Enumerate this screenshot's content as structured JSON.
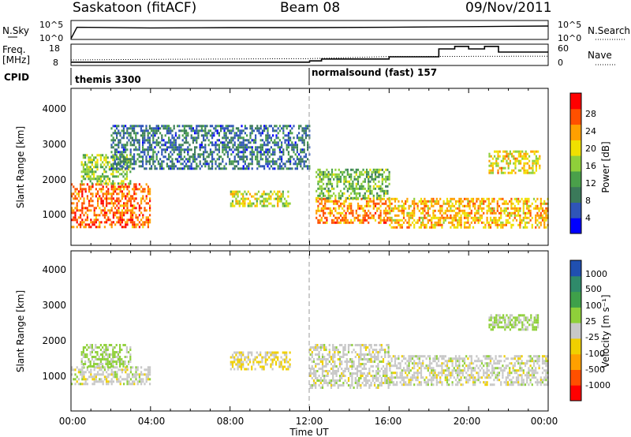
{
  "header": {
    "station": "Saskatoon (fitACF)",
    "beam": "Beam 08",
    "date": "09/Nov/2011"
  },
  "strip": {
    "nsky_label": "N.Sky",
    "nsky_ticks": [
      "10^5",
      "10^0"
    ],
    "nsearch_label": "N.Search",
    "nsearch_ticks": [
      "10^5",
      "10^0"
    ],
    "freq_label": "Freq.",
    "freq_unit": "[MHz]",
    "freq_ticks": [
      "18",
      "8"
    ],
    "nave_label": "Nave",
    "nave_ticks": [
      "60",
      "0"
    ],
    "cpid_label": "CPID",
    "cpid_segments": [
      {
        "name": "themis 3300",
        "start_hour": 0
      },
      {
        "name": "normalsound (fast) 157",
        "start_hour": 12
      }
    ]
  },
  "axes": {
    "ylabel": "Slant Range [km]",
    "xlabel": "Time UT",
    "yticks": [
      "4000",
      "3000",
      "2000",
      "1000"
    ],
    "xticks": [
      "00:00",
      "04:00",
      "08:00",
      "12:00",
      "16:00",
      "20:00",
      "00:00"
    ]
  },
  "colorbars": {
    "power": {
      "label": "Power [dB]",
      "ticks": [
        "28",
        "24",
        "20",
        "16",
        "12",
        "8",
        "4"
      ],
      "colors": [
        "#0000ff",
        "#2f55b8",
        "#3b7a5a",
        "#4aa04a",
        "#8fd03a",
        "#f0e000",
        "#ffa000",
        "#ff5000",
        "#ff0000"
      ]
    },
    "velocity": {
      "label": "Velocity [m s⁻¹]",
      "ticks": [
        "1000",
        "500",
        "100",
        "25",
        "-25",
        "-100",
        "-500",
        "-1000"
      ],
      "colors": [
        "#ff0000",
        "#ff5000",
        "#ffa000",
        "#f0d000",
        "#c8c8c8",
        "#8fd03a",
        "#3fa04a",
        "#2f8a6a",
        "#2050b0"
      ]
    }
  },
  "chart_data": [
    {
      "type": "line",
      "title": "Saskatoon (fitACF) Beam 08 09/Nov/2011",
      "series": [
        {
          "name": "N.Sky",
          "x_hours": [
            0,
            0.3,
            4,
            8,
            12,
            16,
            20,
            24
          ],
          "log10_values": [
            0,
            3.6,
            3.4,
            3.5,
            3.5,
            3.6,
            3.8,
            4.0
          ]
        },
        {
          "name": "Freq.",
          "x_hours": [
            0,
            4,
            12,
            16,
            24
          ],
          "values_mhz": [
            10.5,
            10.8,
            11.2,
            12.3,
            12.5
          ]
        },
        {
          "name": "Nave",
          "x_hours": [
            0,
            12,
            12.6,
            16,
            18.5,
            19.3,
            20,
            20.8,
            21.5,
            24
          ],
          "values": [
            8,
            12,
            18,
            25,
            50,
            58,
            50,
            58,
            40,
            40
          ]
        }
      ]
    },
    {
      "type": "heatmap",
      "title": "Power [dB]",
      "xlabel": "Time UT",
      "ylabel": "Slant Range [km]",
      "xlim_hours": [
        0,
        24
      ],
      "ylim_km": [
        200,
        4500
      ],
      "zlim_db": [
        0,
        32
      ],
      "regions": [
        {
          "hours": [
            0,
            4
          ],
          "range_km": [
            700,
            1900
          ],
          "power_db": 26
        },
        {
          "hours": [
            0.5,
            3
          ],
          "range_km": [
            1900,
            2700
          ],
          "power_db": 16
        },
        {
          "hours": [
            2,
            12
          ],
          "range_km": [
            2300,
            3500
          ],
          "power_db": 8
        },
        {
          "hours": [
            8,
            11
          ],
          "range_km": [
            1300,
            1700
          ],
          "power_db": 18
        },
        {
          "hours": [
            12.3,
            16
          ],
          "range_km": [
            800,
            1500
          ],
          "power_db": 24
        },
        {
          "hours": [
            12.3,
            16
          ],
          "range_km": [
            1500,
            2300
          ],
          "power_db": 14
        },
        {
          "hours": [
            16,
            24
          ],
          "range_km": [
            700,
            1500
          ],
          "power_db": 22
        },
        {
          "hours": [
            21,
            23.6
          ],
          "range_km": [
            2200,
            2800
          ],
          "power_db": 20
        }
      ]
    },
    {
      "type": "heatmap",
      "title": "Velocity [m s-1]",
      "xlabel": "Time UT",
      "ylabel": "Slant Range [km]",
      "xlim_hours": [
        0,
        24
      ],
      "ylim_km": [
        200,
        4500
      ],
      "zlim_ms": [
        -1000,
        1000
      ],
      "regions": [
        {
          "hours": [
            0,
            4
          ],
          "range_km": [
            900,
            1400
          ],
          "velocity_ms": 0
        },
        {
          "hours": [
            0.5,
            3
          ],
          "range_km": [
            1400,
            2000
          ],
          "velocity_ms": 150
        },
        {
          "hours": [
            8,
            11
          ],
          "range_km": [
            1300,
            1800
          ],
          "velocity_ms": -150
        },
        {
          "hours": [
            12,
            16
          ],
          "range_km": [
            800,
            2000
          ],
          "velocity_ms": 0
        },
        {
          "hours": [
            16,
            24
          ],
          "range_km": [
            900,
            1700
          ],
          "velocity_ms": 0
        },
        {
          "hours": [
            21,
            23.5
          ],
          "range_km": [
            2400,
            2800
          ],
          "velocity_ms": 120
        }
      ]
    }
  ]
}
